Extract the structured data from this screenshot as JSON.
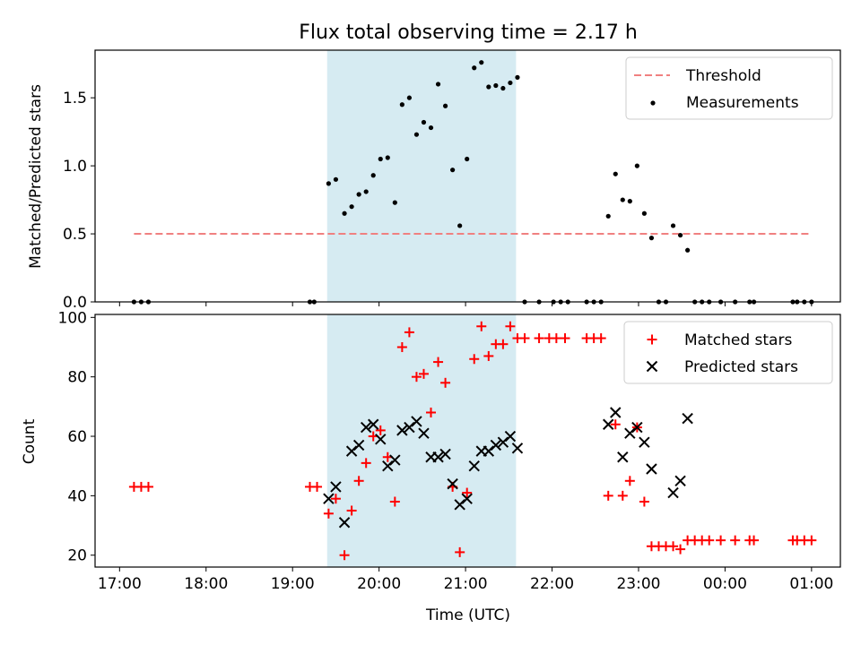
{
  "figure": {
    "title": "Flux total observing time = 2.17 h",
    "xlabel": "Time (UTC)"
  },
  "colors": {
    "threshold": "#f08080",
    "measurement": "#000000",
    "matched": "#ff0000",
    "predicted": "#000000",
    "shade": "#add8e6"
  },
  "chart_data": [
    {
      "type": "scatter",
      "panel": "top",
      "ylabel": "Matched/Predicted stars",
      "ylim": [
        0,
        1.85
      ],
      "yticks": [
        0.0,
        0.5,
        1.0,
        1.5
      ],
      "xlim": [
        "16:43",
        "01:20"
      ],
      "xticks": [
        "17:00",
        "18:00",
        "19:00",
        "20:00",
        "21:00",
        "22:00",
        "23:00",
        "00:00",
        "01:00"
      ],
      "shaded_span": [
        "19:24",
        "21:35"
      ],
      "legend_position": "upper right",
      "threshold": {
        "name": "Threshold",
        "value": 0.5,
        "x_range": [
          "17:10",
          "01:00"
        ],
        "style": "dashed"
      },
      "series": [
        {
          "name": "Measurements",
          "points": [
            [
              "17:10",
              0.0
            ],
            [
              "17:15",
              0.0
            ],
            [
              "17:20",
              0.0
            ],
            [
              "19:12",
              0.0
            ],
            [
              "19:15",
              0.0
            ],
            [
              "19:25",
              0.87
            ],
            [
              "19:30",
              0.9
            ],
            [
              "19:36",
              0.65
            ],
            [
              "19:41",
              0.7
            ],
            [
              "19:46",
              0.79
            ],
            [
              "19:51",
              0.81
            ],
            [
              "19:56",
              0.93
            ],
            [
              "20:01",
              1.05
            ],
            [
              "20:06",
              1.06
            ],
            [
              "20:11",
              0.73
            ],
            [
              "20:16",
              1.45
            ],
            [
              "20:21",
              1.5
            ],
            [
              "20:26",
              1.23
            ],
            [
              "20:31",
              1.32
            ],
            [
              "20:36",
              1.28
            ],
            [
              "20:41",
              1.6
            ],
            [
              "20:46",
              1.44
            ],
            [
              "20:51",
              0.97
            ],
            [
              "20:56",
              0.56
            ],
            [
              "21:01",
              1.05
            ],
            [
              "21:06",
              1.72
            ],
            [
              "21:11",
              1.76
            ],
            [
              "21:16",
              1.58
            ],
            [
              "21:21",
              1.59
            ],
            [
              "21:26",
              1.57
            ],
            [
              "21:31",
              1.61
            ],
            [
              "21:36",
              1.65
            ],
            [
              "21:41",
              0.0
            ],
            [
              "21:51",
              0.0
            ],
            [
              "22:01",
              0.0
            ],
            [
              "22:06",
              0.0
            ],
            [
              "22:11",
              0.0
            ],
            [
              "22:24",
              0.0
            ],
            [
              "22:29",
              0.0
            ],
            [
              "22:34",
              0.0
            ],
            [
              "22:39",
              0.63
            ],
            [
              "22:44",
              0.94
            ],
            [
              "22:49",
              0.75
            ],
            [
              "22:54",
              0.74
            ],
            [
              "22:59",
              1.0
            ],
            [
              "23:04",
              0.65
            ],
            [
              "23:09",
              0.47
            ],
            [
              "23:14",
              0.0
            ],
            [
              "23:19",
              0.0
            ],
            [
              "23:24",
              0.56
            ],
            [
              "23:29",
              0.49
            ],
            [
              "23:34",
              0.38
            ],
            [
              "23:39",
              0.0
            ],
            [
              "23:44",
              0.0
            ],
            [
              "23:49",
              0.0
            ],
            [
              "23:57",
              0.0
            ],
            [
              "00:07",
              0.0
            ],
            [
              "00:17",
              0.0
            ],
            [
              "00:20",
              0.0
            ],
            [
              "00:47",
              0.0
            ],
            [
              "00:50",
              0.0
            ],
            [
              "00:55",
              0.0
            ],
            [
              "01:00",
              0.0
            ]
          ]
        }
      ]
    },
    {
      "type": "scatter",
      "panel": "bottom",
      "ylabel": "Count",
      "ylim": [
        16,
        101
      ],
      "yticks": [
        20,
        40,
        60,
        80,
        100
      ],
      "xlim": [
        "16:43",
        "01:20"
      ],
      "xticks": [
        "17:00",
        "18:00",
        "19:00",
        "20:00",
        "21:00",
        "22:00",
        "23:00",
        "00:00",
        "01:00"
      ],
      "xticklabels": [
        "17:00",
        "18:00",
        "19:00",
        "20:00",
        "21:00",
        "22:00",
        "23:00",
        "00:00",
        "01:00"
      ],
      "shaded_span": [
        "19:24",
        "21:35"
      ],
      "legend_position": "upper right",
      "series": [
        {
          "name": "Matched stars",
          "marker": "+",
          "points": [
            [
              "17:10",
              43
            ],
            [
              "17:15",
              43
            ],
            [
              "17:20",
              43
            ],
            [
              "19:12",
              43
            ],
            [
              "19:17",
              43
            ],
            [
              "19:25",
              34
            ],
            [
              "19:30",
              39
            ],
            [
              "19:36",
              20
            ],
            [
              "19:41",
              35
            ],
            [
              "19:46",
              45
            ],
            [
              "19:51",
              51
            ],
            [
              "19:56",
              60
            ],
            [
              "20:01",
              62
            ],
            [
              "20:06",
              53
            ],
            [
              "20:11",
              38
            ],
            [
              "20:16",
              90
            ],
            [
              "20:21",
              95
            ],
            [
              "20:26",
              80
            ],
            [
              "20:31",
              81
            ],
            [
              "20:36",
              68
            ],
            [
              "20:41",
              85
            ],
            [
              "20:46",
              78
            ],
            [
              "20:51",
              43
            ],
            [
              "20:56",
              21
            ],
            [
              "21:01",
              41
            ],
            [
              "21:06",
              86
            ],
            [
              "21:11",
              97
            ],
            [
              "21:16",
              87
            ],
            [
              "21:21",
              91
            ],
            [
              "21:26",
              91
            ],
            [
              "21:31",
              97
            ],
            [
              "21:36",
              93
            ],
            [
              "21:41",
              93
            ],
            [
              "21:51",
              93
            ],
            [
              "21:58",
              93
            ],
            [
              "22:03",
              93
            ],
            [
              "22:09",
              93
            ],
            [
              "22:24",
              93
            ],
            [
              "22:29",
              93
            ],
            [
              "22:34",
              93
            ],
            [
              "22:39",
              40
            ],
            [
              "22:44",
              64
            ],
            [
              "22:49",
              40
            ],
            [
              "22:54",
              45
            ],
            [
              "22:59",
              63
            ],
            [
              "23:04",
              38
            ],
            [
              "23:09",
              23
            ],
            [
              "23:14",
              23
            ],
            [
              "23:19",
              23
            ],
            [
              "23:24",
              23
            ],
            [
              "23:29",
              22
            ],
            [
              "23:34",
              25
            ],
            [
              "23:39",
              25
            ],
            [
              "23:44",
              25
            ],
            [
              "23:49",
              25
            ],
            [
              "23:57",
              25
            ],
            [
              "00:07",
              25
            ],
            [
              "00:17",
              25
            ],
            [
              "00:20",
              25
            ],
            [
              "00:47",
              25
            ],
            [
              "00:50",
              25
            ],
            [
              "00:55",
              25
            ],
            [
              "01:00",
              25
            ]
          ]
        },
        {
          "name": "Predicted stars",
          "marker": "x",
          "points": [
            [
              "19:25",
              39
            ],
            [
              "19:30",
              43
            ],
            [
              "19:36",
              31
            ],
            [
              "19:41",
              55
            ],
            [
              "19:46",
              57
            ],
            [
              "19:51",
              63
            ],
            [
              "19:56",
              64
            ],
            [
              "20:01",
              59
            ],
            [
              "20:06",
              50
            ],
            [
              "20:11",
              52
            ],
            [
              "20:16",
              62
            ],
            [
              "20:21",
              63
            ],
            [
              "20:26",
              65
            ],
            [
              "20:31",
              61
            ],
            [
              "20:36",
              53
            ],
            [
              "20:41",
              53
            ],
            [
              "20:46",
              54
            ],
            [
              "20:51",
              44
            ],
            [
              "20:56",
              37
            ],
            [
              "21:01",
              39
            ],
            [
              "21:06",
              50
            ],
            [
              "21:11",
              55
            ],
            [
              "21:16",
              55
            ],
            [
              "21:21",
              57
            ],
            [
              "21:26",
              58
            ],
            [
              "21:31",
              60
            ],
            [
              "21:36",
              56
            ],
            [
              "22:39",
              64
            ],
            [
              "22:44",
              68
            ],
            [
              "22:49",
              53
            ],
            [
              "22:54",
              61
            ],
            [
              "22:59",
              63
            ],
            [
              "23:04",
              58
            ],
            [
              "23:09",
              49
            ],
            [
              "23:24",
              41
            ],
            [
              "23:29",
              45
            ],
            [
              "23:34",
              66
            ]
          ]
        }
      ]
    }
  ]
}
